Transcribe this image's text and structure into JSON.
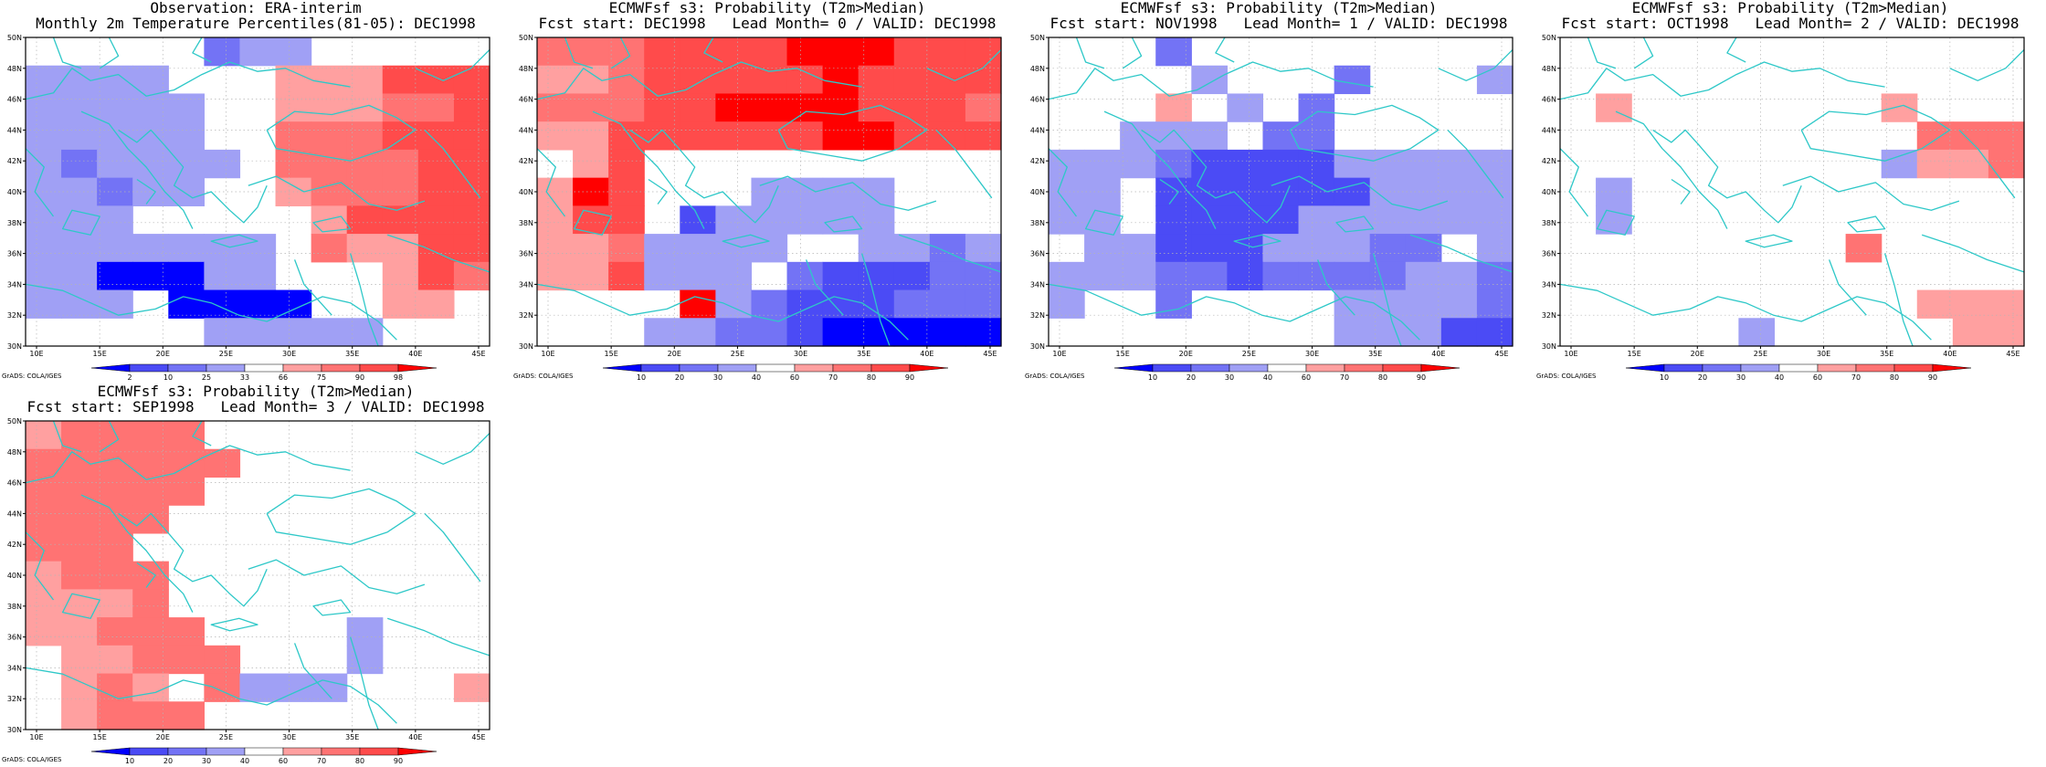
{
  "ticks": {
    "lon": [
      "10E",
      "15E",
      "20E",
      "25E",
      "30E",
      "35E",
      "40E",
      "45E"
    ],
    "lat": [
      "30N",
      "32N",
      "34N",
      "36N",
      "38N",
      "40N",
      "42N",
      "44N",
      "46N",
      "48N",
      "50N"
    ]
  },
  "colorbars": {
    "obs": {
      "labels": [
        "2",
        "10",
        "25",
        "33",
        "66",
        "75",
        "90",
        "98"
      ],
      "colors": [
        "#0000ff",
        "#4b4bf5",
        "#7373f5",
        "#a0a0f5",
        "#ffffff",
        "#ffa0a0",
        "#ff7373",
        "#ff4b4b",
        "#ff0000"
      ]
    },
    "prob": {
      "labels": [
        "10",
        "20",
        "30",
        "40",
        "60",
        "70",
        "80",
        "90"
      ],
      "colors": [
        "#0000ff",
        "#4b4bf5",
        "#7373f5",
        "#a0a0f5",
        "#ffffff",
        "#ffa0a0",
        "#ff7373",
        "#ff4b4b",
        "#ff0000"
      ]
    }
  },
  "credit": "GrADS: COLA/IGES",
  "palette": {
    "ocean_line": "#2ec8c8",
    "grid": "#b4b4b4"
  },
  "panels": [
    {
      "title1": "Observation: ERA-interim",
      "title2": "Monthly 2m Temperature Percentiles(81-05): DEC1998",
      "cb": "obs",
      "grid": [
        "4444423344444",
        "3333444555777",
        "3333344555667",
        "3333344666777",
        "3233334666677",
        "3323344566677",
        "3334444457777",
        "3333333465577",
        "3300033444576",
        "3334000044554",
        "4444433333444"
      ]
    },
    {
      "title1": "ECMWFsf s3: Probability (T2m>Median)",
      "title2": "Fcst start: DEC1998   Lead Month= 0 / VALID: DEC1998",
      "cb": "prob",
      "grid": [
        "6667777888777",
        "5567777787777",
        "6667788887776",
        "5577777788777",
        "4574444444444",
        "5874443333444",
        "5774133333444",
        "5563333443323",
        "5573334211122",
        "4444832111222",
        "4443322100000"
      ]
    },
    {
      "title1": "ECMWFsf s3: Probability (T2m>Median)",
      "title2": "Fcst start: NOV1998   Lead Month= 1 / VALID: DEC1998",
      "cb": "prob",
      "grid": [
        "4442444444444",
        "4444344424443",
        "4445434244444",
        "4433342244444",
        "3332111133333",
        "3341111113333",
        "3341111333333",
        "4331113332243",
        "3332212222332",
        "3442444433332",
        "4444444433311"
      ]
    },
    {
      "title1": "ECMWFsf s3: Probability (T2m>Median)",
      "title2": "Fcst start: OCT1998   Lead Month= 2 / VALID: DEC1998",
      "cb": "prob",
      "grid": [
        "4444444444444",
        "4444444444444",
        "4544444445444",
        "4444444444666",
        "4444444443556",
        "4344444444444",
        "4344444444444",
        "4444444464444",
        "4444444444444",
        "4444444444555",
        "4444434444455"
      ]
    },
    {
      "title1": "ECMWFsf s3: Probability (T2m>Median)",
      "title2": "Fcst start: SEP1998   Lead Month= 3 / VALID: DEC1998",
      "cb": "prob",
      "grid": [
        "5666644444444",
        "6666664444444",
        "6666644444444",
        "6666444444444",
        "6664444444444",
        "5666444444444",
        "5556444444444",
        "5566644443444",
        "4556664443444",
        "4565463334445",
        "4566644444444"
      ]
    }
  ]
}
